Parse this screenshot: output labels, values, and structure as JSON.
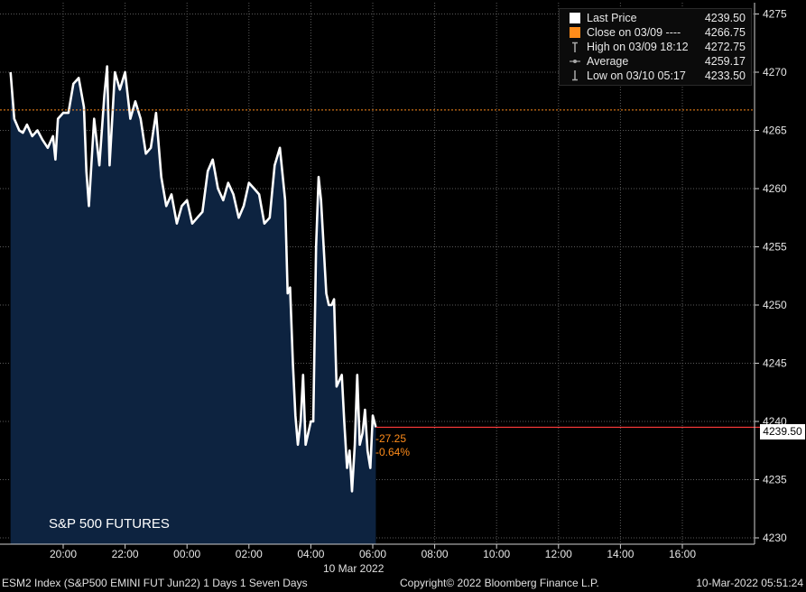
{
  "chart_data": {
    "type": "area",
    "title": "",
    "series_label": "S&P 500 FUTURES",
    "x_tick_labels": [
      "20:00",
      "22:00",
      "00:00",
      "02:00",
      "04:00",
      "06:00",
      "08:00",
      "10:00",
      "12:00",
      "14:00",
      "16:00"
    ],
    "x_date_label": "10 Mar 2022",
    "y_tick_labels": [
      "4230",
      "4235",
      "4240",
      "4245",
      "4250",
      "4255",
      "4260",
      "4265",
      "4270",
      "4275"
    ],
    "ylim": [
      4229.5,
      4276
    ],
    "grid": true,
    "legend_position": "top-right",
    "x_hours": [
      18.3,
      18.42,
      18.5,
      18.58,
      18.7,
      18.83,
      19.0,
      19.17,
      19.33,
      19.5,
      19.67,
      19.75,
      19.83,
      20.0,
      20.17,
      20.33,
      20.5,
      20.67,
      20.75,
      20.83,
      21.0,
      21.17,
      21.33,
      21.42,
      21.5,
      21.67,
      21.83,
      22.0,
      22.17,
      22.33,
      22.5,
      22.67,
      22.83,
      23.0,
      23.17,
      23.33,
      23.5,
      23.67,
      23.83,
      24.0,
      24.17,
      24.33,
      24.5,
      24.67,
      24.83,
      25.0,
      25.17,
      25.33,
      25.5,
      25.67,
      25.83,
      26.0,
      26.17,
      26.33,
      26.5,
      26.67,
      26.83,
      27.0,
      27.17,
      27.25,
      27.33,
      27.42,
      27.5,
      27.58,
      27.67,
      27.75,
      27.83,
      28.0,
      28.08,
      28.17,
      28.25,
      28.33,
      28.5,
      28.58,
      28.67,
      28.75,
      28.83,
      29.0,
      29.08,
      29.17,
      29.25,
      29.33,
      29.42,
      29.5,
      29.58,
      29.67,
      29.75,
      29.83,
      29.92,
      30.0,
      30.1
    ],
    "values": [
      4270.0,
      4266.0,
      4265.5,
      4265.0,
      4264.8,
      4265.5,
      4264.5,
      4265.0,
      4264.2,
      4263.5,
      4264.5,
      4262.5,
      4266.0,
      4266.5,
      4266.5,
      4269.0,
      4269.5,
      4267.0,
      4261.5,
      4258.5,
      4266.0,
      4262.0,
      4268.0,
      4270.5,
      4262.0,
      4270.0,
      4268.5,
      4270.0,
      4266.0,
      4267.5,
      4266.0,
      4263.0,
      4263.5,
      4266.5,
      4261.0,
      4258.5,
      4259.5,
      4257.0,
      4258.5,
      4259.0,
      4257.0,
      4257.5,
      4258.0,
      4261.5,
      4262.5,
      4260.0,
      4259.0,
      4260.5,
      4259.5,
      4257.5,
      4258.5,
      4260.5,
      4260.0,
      4259.5,
      4257.0,
      4257.5,
      4262.0,
      4263.5,
      4259.0,
      4251.0,
      4251.5,
      4245.0,
      4240.5,
      4238.0,
      4240.0,
      4244.0,
      4238.0,
      4240.0,
      4240.0,
      4255.0,
      4261.0,
      4259.0,
      4251.0,
      4250.0,
      4250.0,
      4250.5,
      4243.0,
      4244.0,
      4240.0,
      4236.0,
      4237.5,
      4234.0,
      4238.0,
      4244.0,
      4238.0,
      4239.0,
      4241.0,
      4237.5,
      4236.0,
      4240.5,
      4239.5
    ],
    "reference_lines": [
      {
        "name": "Close on 03/09",
        "value": 4266.75,
        "color": "#ff8c1a"
      },
      {
        "name": "Last Price",
        "value": 4239.5,
        "color": "#ff3b3b"
      }
    ],
    "colors": {
      "area": "#0d2340",
      "line": "#ffffff",
      "background": "#000000"
    }
  },
  "legend": {
    "items": [
      {
        "label": "Last Price",
        "value": "4239.50",
        "marker": "white-square-icon"
      },
      {
        "label": "Close on 03/09 ----",
        "value": "4266.75",
        "marker": "orange-square-icon"
      },
      {
        "label": "High on 03/09 18:12",
        "value": "4272.75",
        "marker": "high-marker-icon"
      },
      {
        "label": "Average",
        "value": "4259.17",
        "marker": "average-marker-icon"
      },
      {
        "label": "Low on 03/10 05:17",
        "value": "4233.50",
        "marker": "low-marker-icon"
      }
    ]
  },
  "last_price_box": "4239.50",
  "change_abs": "-27.25",
  "change_pct": "-0.64%",
  "footer": {
    "left": "ESM2 Index (S&P500 EMINI FUT  Jun22) 1 Days 1 Seven Days",
    "center": "Copyright© 2022 Bloomberg Finance L.P.",
    "right": "10-Mar-2022 05:51:24"
  }
}
